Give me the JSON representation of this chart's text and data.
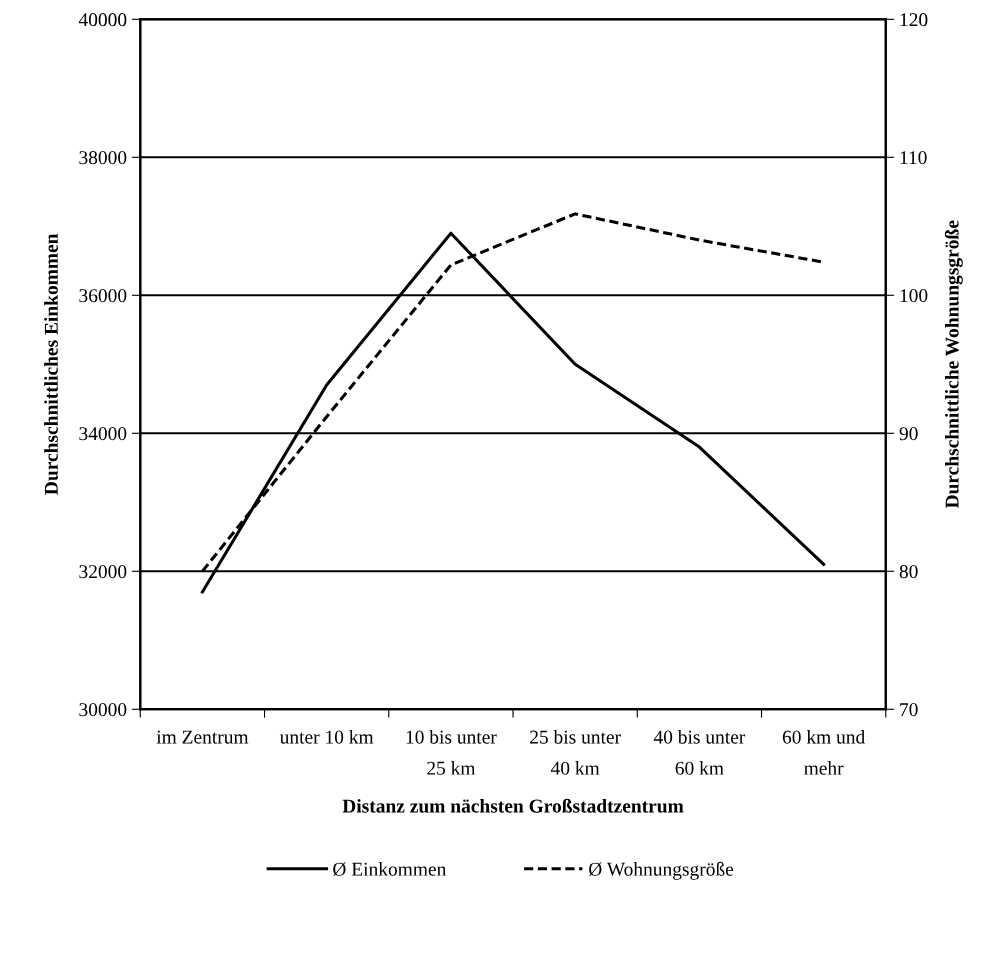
{
  "chart_data": {
    "type": "line",
    "xlabel": "Distanz zum nächsten Großstadtzentrum",
    "ylabel": "Durchschnittliches Einkommen",
    "y2label": "Durchschnittliche Wohnungsgröße",
    "categories": [
      "im Zentrum",
      "unter 10 km",
      "10 bis unter 25 km",
      "25 bis unter 40 km",
      "40 bis unter 60 km",
      "60 km und mehr"
    ],
    "series": [
      {
        "name": "Ø Einkommen",
        "color": "#000000",
        "line_style": "solid",
        "values": [
          31700,
          34700,
          36900,
          35000,
          33800,
          32100
        ]
      },
      {
        "name": "Ø Wohnungsgröße",
        "color": "#000000",
        "line_style": "dashed",
        "axis": "y2",
        "values": [
          80,
          91.2,
          102.2,
          105.9,
          104.0,
          102.4
        ]
      }
    ],
    "ylim": [
      30000,
      40000
    ],
    "yticks": [
      30000,
      32000,
      34000,
      36000,
      38000,
      40000
    ],
    "y2lim": [
      70,
      120
    ],
    "y2ticks": [
      70,
      80,
      90,
      100,
      110,
      120
    ],
    "grid": "y",
    "legend": "bottom",
    "marker": "none"
  }
}
